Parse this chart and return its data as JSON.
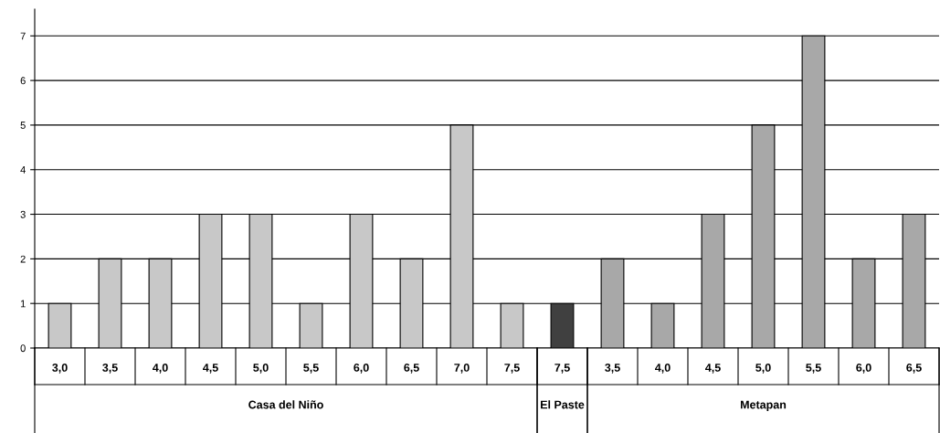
{
  "chart_data": {
    "type": "bar",
    "categories": [
      "3,0",
      "3,5",
      "4,0",
      "4,5",
      "5,0",
      "5,5",
      "6,0",
      "6,5",
      "7,0",
      "7,5",
      "7,5",
      "3,5",
      "4,0",
      "4,5",
      "5,0",
      "5,5",
      "6,0",
      "6,5"
    ],
    "series": [
      {
        "color": "#c8c8c8",
        "values": [
          1,
          2,
          2,
          3,
          3,
          1,
          3,
          2,
          5,
          1,
          null,
          null,
          null,
          null,
          null,
          null,
          null,
          null
        ]
      },
      {
        "color": "#404040",
        "values": [
          null,
          null,
          null,
          null,
          null,
          null,
          null,
          null,
          null,
          null,
          1,
          null,
          null,
          null,
          null,
          null,
          null,
          null
        ]
      },
      {
        "color": "#a8a8a8",
        "values": [
          null,
          null,
          null,
          null,
          null,
          null,
          null,
          null,
          null,
          null,
          null,
          2,
          1,
          3,
          5,
          7,
          2,
          3
        ]
      }
    ],
    "annotations": [
      "Casa del Niño",
      "El Paste",
      "Metapan"
    ],
    "ylim": [
      0,
      7.6
    ],
    "yticks": [
      0,
      1,
      2,
      3,
      4,
      5,
      6,
      7
    ],
    "grid": "y",
    "legend": false
  }
}
